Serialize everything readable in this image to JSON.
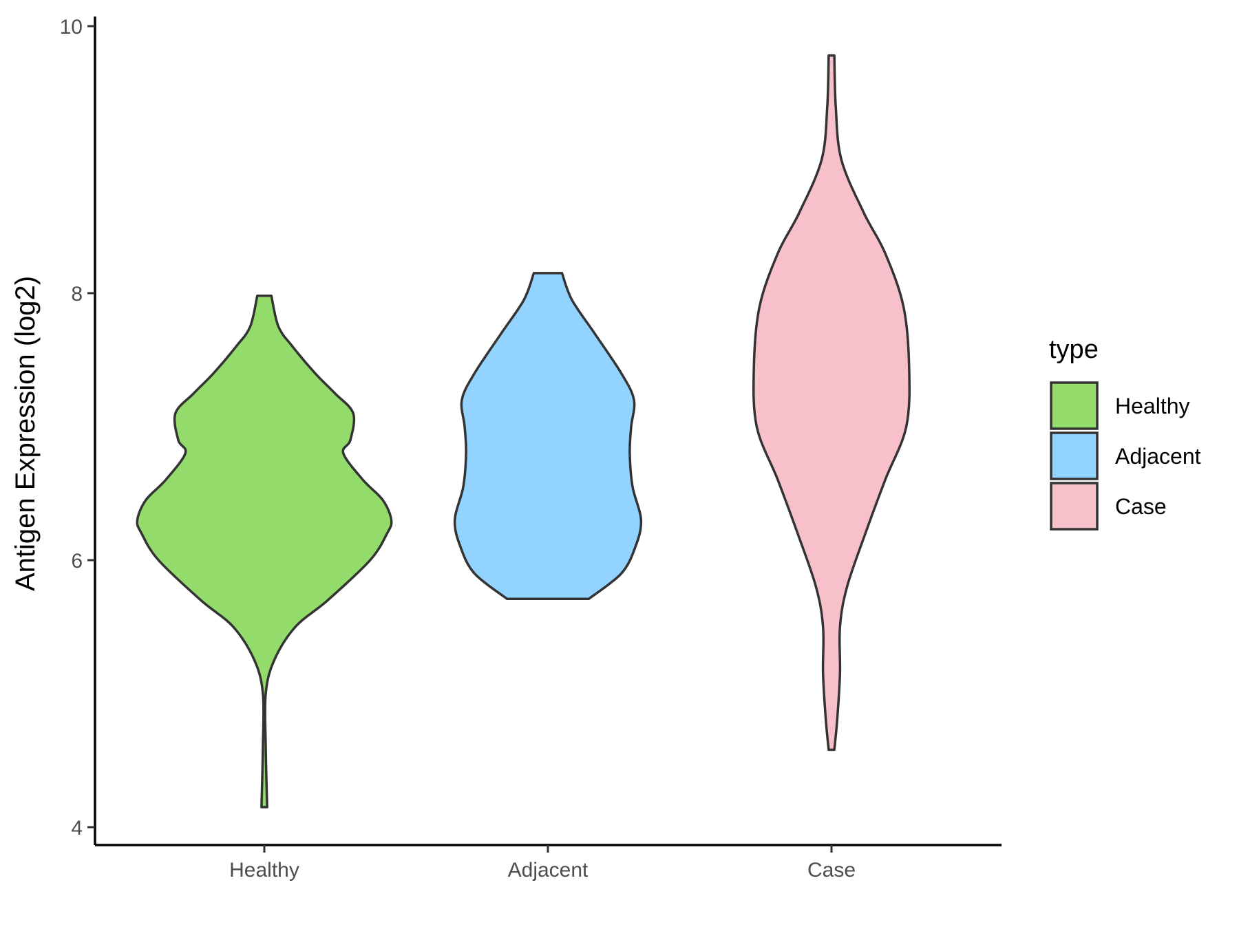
{
  "chart_data": {
    "type": "violin",
    "ylabel": "Antigen Expression (log2)",
    "xlabel": "",
    "ylim": [
      3.85,
      10.1
    ],
    "yticks": [
      4,
      6,
      8,
      10
    ],
    "categories": [
      "Healthy",
      "Adjacent",
      "Case"
    ],
    "legend": {
      "title": "type",
      "position": "right",
      "items": [
        {
          "label": "Healthy",
          "color": "#93DC6B"
        },
        {
          "label": "Adjacent",
          "color": "#93D3FF"
        },
        {
          "label": "Case",
          "color": "#F8C0CB"
        }
      ]
    },
    "grid": false,
    "series": [
      {
        "category": "Healthy",
        "color": "#93DC6B",
        "min": 4.15,
        "max": 7.98,
        "density_half_width": [
          [
            4.15,
            0.02
          ],
          [
            4.6,
            0.01
          ],
          [
            5.0,
            0.01
          ],
          [
            5.25,
            0.07
          ],
          [
            5.5,
            0.22
          ],
          [
            5.7,
            0.45
          ],
          [
            6.0,
            0.75
          ],
          [
            6.2,
            0.87
          ],
          [
            6.3,
            0.9
          ],
          [
            6.45,
            0.84
          ],
          [
            6.6,
            0.7
          ],
          [
            6.8,
            0.56
          ],
          [
            6.9,
            0.61
          ],
          [
            7.1,
            0.63
          ],
          [
            7.25,
            0.5
          ],
          [
            7.4,
            0.36
          ],
          [
            7.6,
            0.2
          ],
          [
            7.75,
            0.1
          ],
          [
            7.98,
            0.05
          ]
        ]
      },
      {
        "category": "Adjacent",
        "color": "#93D3FF",
        "min": 5.71,
        "max": 8.15,
        "density_half_width": [
          [
            5.71,
            0.29
          ],
          [
            5.9,
            0.52
          ],
          [
            6.1,
            0.62
          ],
          [
            6.3,
            0.66
          ],
          [
            6.55,
            0.6
          ],
          [
            6.8,
            0.58
          ],
          [
            7.0,
            0.59
          ],
          [
            7.2,
            0.61
          ],
          [
            7.4,
            0.52
          ],
          [
            7.7,
            0.33
          ],
          [
            7.95,
            0.17
          ],
          [
            8.15,
            0.1
          ]
        ]
      },
      {
        "category": "Case",
        "color": "#F8C0CB",
        "min": 4.58,
        "max": 9.78,
        "density_half_width": [
          [
            4.58,
            0.02
          ],
          [
            4.8,
            0.04
          ],
          [
            5.15,
            0.06
          ],
          [
            5.5,
            0.06
          ],
          [
            5.8,
            0.11
          ],
          [
            6.2,
            0.24
          ],
          [
            6.6,
            0.38
          ],
          [
            7.0,
            0.53
          ],
          [
            7.45,
            0.55
          ],
          [
            7.9,
            0.51
          ],
          [
            8.3,
            0.38
          ],
          [
            8.6,
            0.23
          ],
          [
            9.0,
            0.07
          ],
          [
            9.4,
            0.03
          ],
          [
            9.78,
            0.02
          ]
        ]
      }
    ]
  }
}
